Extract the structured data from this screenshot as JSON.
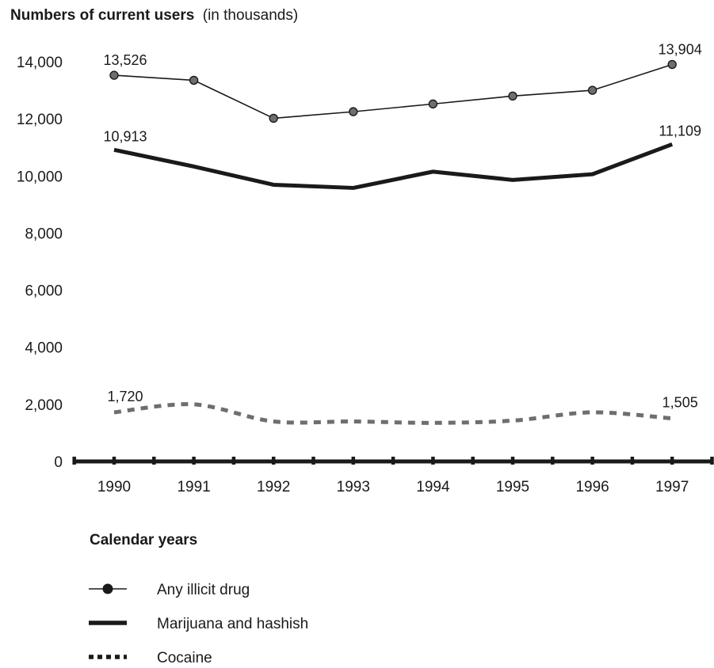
{
  "chart_data": {
    "type": "line",
    "title": "Numbers of current users",
    "subtitle": "(in thousands)",
    "xlabel": "Calendar years",
    "ylabel": "",
    "categories": [
      "1990",
      "1991",
      "1992",
      "1993",
      "1994",
      "1995",
      "1996",
      "1997"
    ],
    "y_ticks": [
      "0",
      "2,000",
      "4,000",
      "6,000",
      "8,000",
      "10,000",
      "12,000",
      "14,000"
    ],
    "ylim": [
      0,
      14000
    ],
    "grid": false,
    "legend_position": "bottom-left",
    "series": [
      {
        "name": "Any illicit drug",
        "style": "thin line with circle markers",
        "color": "#1a1a1a",
        "marker_color": "#6e6e6e",
        "values": [
          13526,
          13350,
          12020,
          12250,
          12520,
          12800,
          13000,
          13904
        ],
        "labels": [
          "13,526",
          "",
          "",
          "",
          "",
          "",
          "",
          "13,904"
        ]
      },
      {
        "name": "Marijuana and hashish",
        "style": "thick solid line",
        "color": "#1a1a1a",
        "values": [
          10913,
          10330,
          9690,
          9580,
          10150,
          9860,
          10060,
          11109
        ],
        "labels": [
          "10,913",
          "",
          "",
          "",
          "",
          "",
          "",
          "11,109"
        ]
      },
      {
        "name": "Cocaine",
        "style": "dotted line",
        "color": "#6e6e6e",
        "values": [
          1720,
          2000,
          1400,
          1400,
          1350,
          1430,
          1720,
          1505
        ],
        "labels": [
          "1,720",
          "",
          "",
          "",
          "",
          "",
          "",
          "1,505"
        ]
      }
    ]
  }
}
